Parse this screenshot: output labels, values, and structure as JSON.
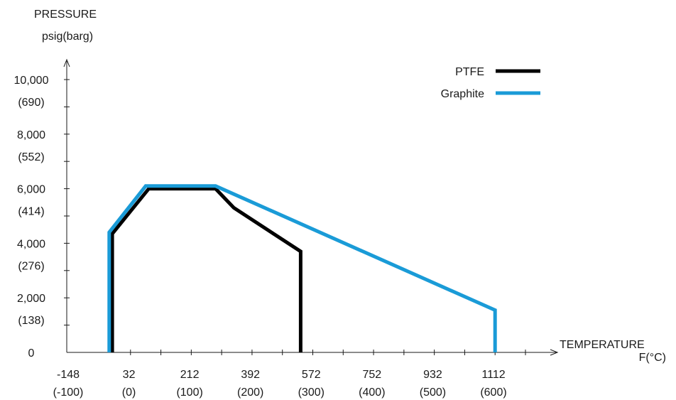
{
  "chart_data": {
    "type": "line",
    "title": "",
    "y_axis": {
      "title_line1": "PRESSURE",
      "title_line2": "psig(barg)",
      "range": [
        0,
        10000
      ],
      "ticks": [
        {
          "value": 0,
          "line1": "0",
          "line2": ""
        },
        {
          "value": 2000,
          "line1": "2,000",
          "line2": "(138)"
        },
        {
          "value": 4000,
          "line1": "4,000",
          "line2": "(276)"
        },
        {
          "value": 6000,
          "line1": "6,000",
          "line2": "(414)"
        },
        {
          "value": 8000,
          "line1": "8,000",
          "line2": "(552)"
        },
        {
          "value": 10000,
          "line1": "10,000",
          "line2": "(690)"
        }
      ]
    },
    "x_axis": {
      "title_line1": "TEMPERATURE",
      "title_line2": "F(°C)",
      "range": [
        -148,
        1112
      ],
      "ticks": [
        {
          "value": -148,
          "line1": "-148",
          "line2": "(-100)"
        },
        {
          "value": 32,
          "line1": "32",
          "line2": "(0)"
        },
        {
          "value": 212,
          "line1": "212",
          "line2": "(100)"
        },
        {
          "value": 392,
          "line1": "392",
          "line2": "(200)"
        },
        {
          "value": 572,
          "line1": "572",
          "line2": "(300)"
        },
        {
          "value": 752,
          "line1": "752",
          "line2": "(400)"
        },
        {
          "value": 932,
          "line1": "932",
          "line2": "(500)"
        },
        {
          "value": 1112,
          "line1": "1112",
          "line2": "(600)"
        }
      ]
    },
    "legend_position": "top-right",
    "grid": false,
    "series": [
      {
        "name": "PTFE",
        "color": "#000000",
        "points": [
          [
            -112,
            0
          ],
          [
            -112,
            4350
          ],
          [
            -4,
            6000
          ],
          [
            194,
            6000
          ],
          [
            248,
            5300
          ],
          [
            446,
            3700
          ],
          [
            446,
            0
          ]
        ]
      },
      {
        "name": "Graphite",
        "color": "#1a9bd7",
        "points": [
          [
            -121,
            0
          ],
          [
            -121,
            4400
          ],
          [
            -13,
            6100
          ],
          [
            194,
            6100
          ],
          [
            1022,
            1550
          ],
          [
            1022,
            0
          ]
        ]
      }
    ]
  }
}
